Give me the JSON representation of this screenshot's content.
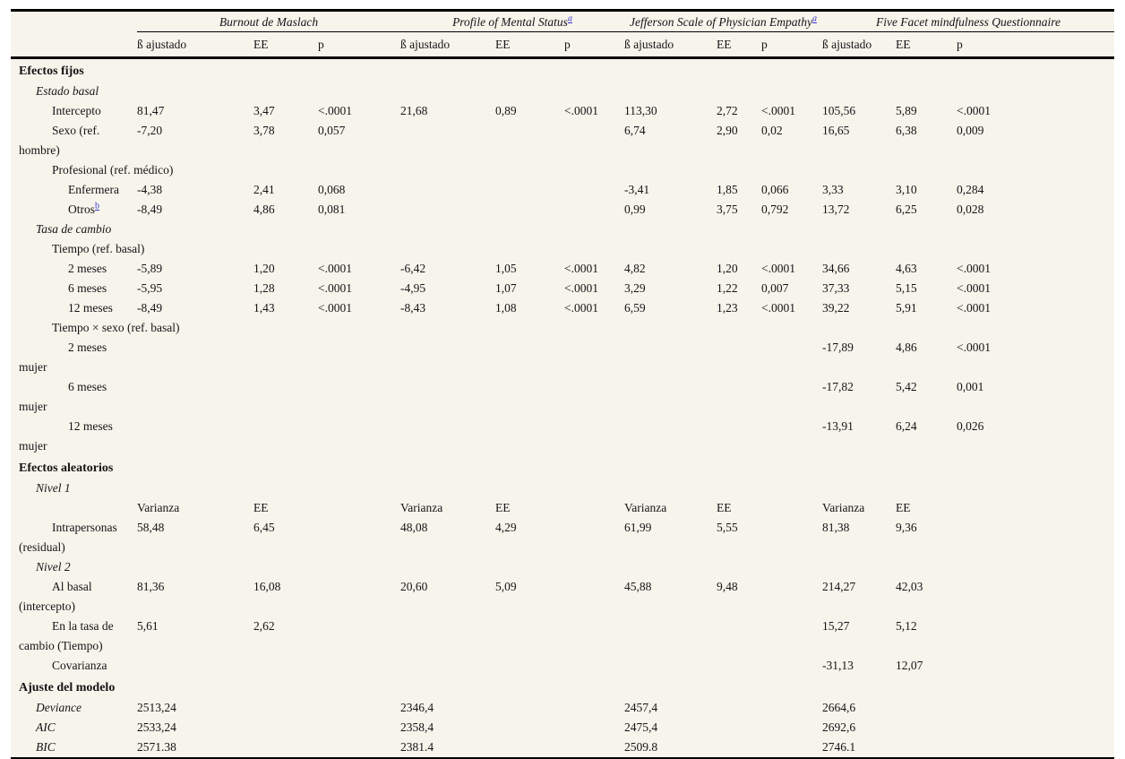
{
  "palette": {
    "table_background": "#f7f4ec",
    "rule_color": "#000000",
    "text_color": "#141414",
    "link_color": "#3333cc"
  },
  "table": {
    "groups": [
      {
        "label": "Burnout de Maslach",
        "footnote": ""
      },
      {
        "label": "Profile of Mental Status",
        "footnote": "a"
      },
      {
        "label": "Jefferson Scale of Physician Empathy",
        "footnote": "a"
      },
      {
        "label": "Five Facet mindfulness Questionnaire",
        "footnote": ""
      }
    ],
    "subheaders": [
      "ß ajustado",
      "EE",
      "p"
    ],
    "rows": [
      {
        "style": "bold",
        "indent": 0,
        "label": "Efectos fijos",
        "cells": []
      },
      {
        "style": "italic",
        "indent": 1,
        "label": "Estado basal",
        "cells": []
      },
      {
        "style": "normal",
        "indent": 2,
        "label": "Intercepto",
        "cells": [
          "81,47",
          "3,47",
          "<.0001",
          "21,68",
          "0,89",
          "<.0001",
          "113,30",
          "2,72",
          "<.0001",
          "105,56",
          "5,89",
          "<.0001"
        ]
      },
      {
        "style": "normal",
        "indent": 2,
        "label": "Sexo (ref.",
        "label2": "hombre)",
        "cells": [
          "-7,20",
          "3,78",
          "0,057",
          "",
          "",
          "",
          "6,74",
          "2,90",
          "0,02",
          "16,65",
          "6,38",
          "0,009"
        ]
      },
      {
        "style": "normal",
        "indent": 2,
        "label": "Profesional (ref. médico)",
        "cells": []
      },
      {
        "style": "normal",
        "indent": 3,
        "label": "Enfermera",
        "cells": [
          "-4,38",
          "2,41",
          "0,068",
          "",
          "",
          "",
          "-3,41",
          "1,85",
          "0,066",
          "3,33",
          "3,10",
          "0,284"
        ]
      },
      {
        "style": "normal",
        "indent": 3,
        "label": "Otros",
        "sup": "b",
        "cells": [
          "-8,49",
          "4,86",
          "0,081",
          "",
          "",
          "",
          "0,99",
          "3,75",
          "0,792",
          "13,72",
          "6,25",
          "0,028"
        ]
      },
      {
        "style": "italic",
        "indent": 1,
        "label": "Tasa de cambio",
        "cells": []
      },
      {
        "style": "normal",
        "indent": 2,
        "label": "Tiempo (ref. basal)",
        "cells": []
      },
      {
        "style": "normal",
        "indent": 3,
        "label": "2 meses",
        "cells": [
          "-5,89",
          "1,20",
          "<.0001",
          "-6,42",
          "1,05",
          "<.0001",
          "4,82",
          "1,20",
          "<.0001",
          "34,66",
          "4,63",
          "<.0001"
        ]
      },
      {
        "style": "normal",
        "indent": 3,
        "label": "6 meses",
        "cells": [
          "-5,95",
          "1,28",
          "<.0001",
          "-4,95",
          "1,07",
          "<.0001",
          "3,29",
          "1,22",
          "0,007",
          "37,33",
          "5,15",
          "<.0001"
        ]
      },
      {
        "style": "normal",
        "indent": 3,
        "label": "12 meses",
        "cells": [
          "-8,49",
          "1,43",
          "<.0001",
          "-8,43",
          "1,08",
          "<.0001",
          "6,59",
          "1,23",
          "<.0001",
          "39,22",
          "5,91",
          "<.0001"
        ]
      },
      {
        "style": "normal",
        "indent": 2,
        "label": "Tiempo × sexo (ref. basal)",
        "cells": []
      },
      {
        "style": "normal",
        "indent": 3,
        "label": "2 meses",
        "label2": "mujer",
        "cells": [
          "",
          "",
          "",
          "",
          "",
          "",
          "",
          "",
          "",
          "-17,89",
          "4,86",
          "<.0001"
        ]
      },
      {
        "style": "normal",
        "indent": 3,
        "label": "6 meses",
        "label2": "mujer",
        "cells": [
          "",
          "",
          "",
          "",
          "",
          "",
          "",
          "",
          "",
          "-17,82",
          "5,42",
          "0,001"
        ]
      },
      {
        "style": "normal",
        "indent": 3,
        "label": "12 meses",
        "label2": "mujer",
        "cells": [
          "",
          "",
          "",
          "",
          "",
          "",
          "",
          "",
          "",
          "-13,91",
          "6,24",
          "0,026"
        ]
      },
      {
        "style": "bold",
        "indent": 0,
        "label": "Efectos aleatorios",
        "cells": []
      },
      {
        "style": "italic",
        "indent": 1,
        "label": "Nivel 1",
        "cells": []
      },
      {
        "style": "normal",
        "indent": 2,
        "label": "",
        "cells": [
          "Varianza",
          "EE",
          "",
          "Varianza",
          "EE",
          "",
          "Varianza",
          "EE",
          "",
          "Varianza",
          "EE",
          ""
        ]
      },
      {
        "style": "normal",
        "indent": 2,
        "label": "Intrapersonas",
        "label2": "(residual)",
        "cells": [
          "58,48",
          "6,45",
          "",
          "48,08",
          "4,29",
          "",
          "61,99",
          "5,55",
          "",
          "81,38",
          "9,36",
          ""
        ]
      },
      {
        "style": "italic",
        "indent": 1,
        "label": "Nivel 2",
        "cells": []
      },
      {
        "style": "normal",
        "indent": 2,
        "label": "Al basal",
        "label2": "(intercepto)",
        "cells": [
          "81,36",
          "16,08",
          "",
          "20,60",
          "5,09",
          "",
          "45,88",
          "9,48",
          "",
          "214,27",
          "42,03",
          ""
        ]
      },
      {
        "style": "normal",
        "indent": 2,
        "label": "En la tasa de",
        "label2": "cambio (Tiempo)",
        "cells": [
          "5,61",
          "2,62",
          "",
          "",
          "",
          "",
          "",
          "",
          "",
          "15,27",
          "5,12",
          ""
        ]
      },
      {
        "style": "normal",
        "indent": 2,
        "label": "Covarianza",
        "cells": [
          "",
          "",
          "",
          "",
          "",
          "",
          "",
          "",
          "",
          "-31,13",
          "12,07",
          ""
        ]
      },
      {
        "style": "bold",
        "indent": 0,
        "label": "Ajuste del modelo",
        "cells": []
      },
      {
        "style": "italic",
        "indent": 1,
        "label": "Deviance",
        "cells": [
          "2513,24",
          "",
          "",
          "2346,4",
          "",
          "",
          "2457,4",
          "",
          "",
          "2664,6",
          "",
          ""
        ]
      },
      {
        "style": "italic",
        "indent": 1,
        "label": "AIC",
        "cells": [
          "2533,24",
          "",
          "",
          "2358,4",
          "",
          "",
          "2475,4",
          "",
          "",
          "2692,6",
          "",
          ""
        ]
      },
      {
        "style": "italic",
        "indent": 1,
        "label": "BIC",
        "cells": [
          "2571.38",
          "",
          "",
          "2381.4",
          "",
          "",
          "2509.8",
          "",
          "",
          "2746.1",
          "",
          ""
        ]
      }
    ]
  }
}
